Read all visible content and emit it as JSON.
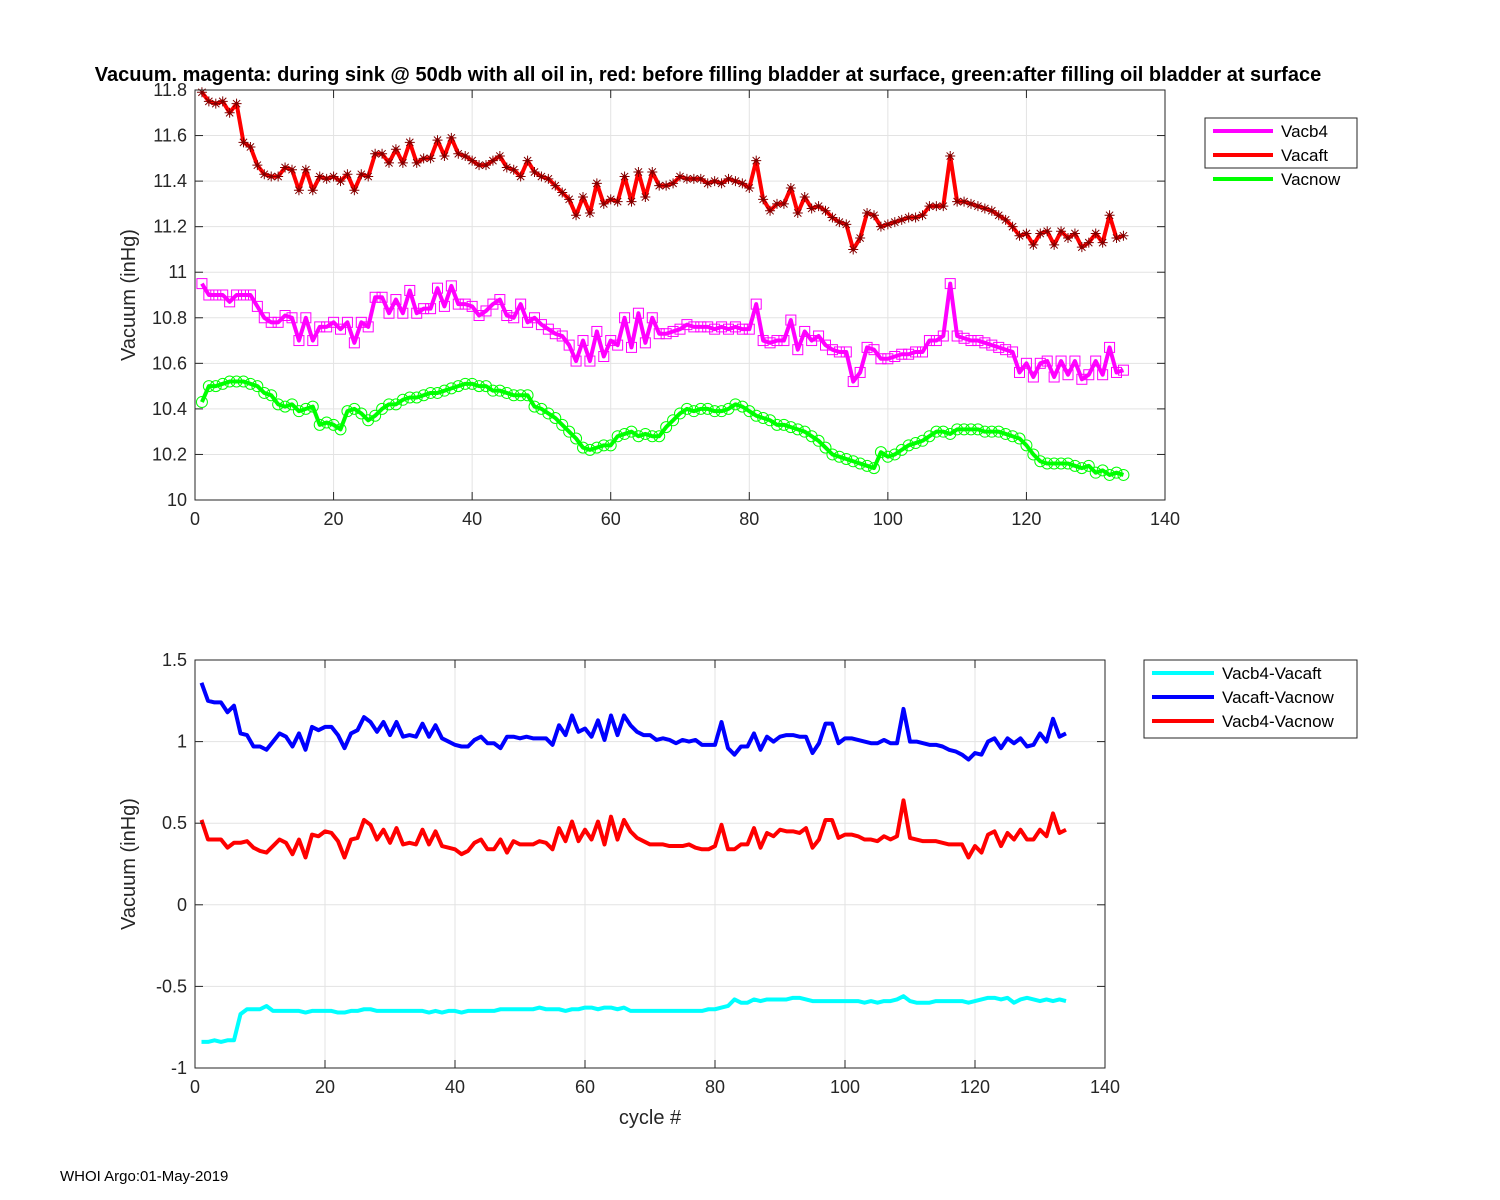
{
  "figure": {
    "title": "Vacuum. magenta: during sink @ 50db with all oil in, red: before filling bladder at surface, green:after filling oil bladder at surface",
    "footer": "WHOI Argo:01-May-2019"
  },
  "chart_data": [
    {
      "type": "line",
      "title": "Vacuum. magenta: during sink @ 50db with all oil in, red: before filling bladder at surface, green:after filling oil bladder at surface",
      "xlabel": "",
      "ylabel": "Vacuum (inHg)",
      "xlim": [
        0,
        140
      ],
      "ylim": [
        10,
        11.8
      ],
      "xticks": [
        0,
        20,
        40,
        60,
        80,
        100,
        120,
        140
      ],
      "yticks": [
        10,
        10.2,
        10.4,
        10.6,
        10.8,
        11,
        11.2,
        11.4,
        11.6,
        11.8
      ],
      "grid": true,
      "legend_position": "outside-top-right",
      "x_start": 1,
      "series": [
        {
          "name": "Vacb4",
          "color": "#ff00ff",
          "marker": "square",
          "values": [
            10.95,
            10.9,
            10.9,
            10.9,
            10.87,
            10.9,
            10.9,
            10.9,
            10.85,
            10.8,
            10.78,
            10.78,
            10.81,
            10.8,
            10.7,
            10.8,
            10.7,
            10.76,
            10.76,
            10.78,
            10.75,
            10.78,
            10.69,
            10.78,
            10.76,
            10.89,
            10.89,
            10.82,
            10.88,
            10.82,
            10.92,
            10.82,
            10.84,
            10.84,
            10.93,
            10.85,
            10.94,
            10.86,
            10.86,
            10.85,
            10.81,
            10.83,
            10.86,
            10.88,
            10.81,
            10.8,
            10.86,
            10.78,
            10.8,
            10.77,
            10.75,
            10.73,
            10.72,
            10.68,
            10.61,
            10.7,
            10.61,
            10.74,
            10.63,
            10.7,
            10.68,
            10.8,
            10.67,
            10.82,
            10.69,
            10.8,
            10.73,
            10.73,
            10.74,
            10.75,
            10.77,
            10.76,
            10.76,
            10.76,
            10.75,
            10.76,
            10.75,
            10.76,
            10.75,
            10.75,
            10.86,
            10.7,
            10.69,
            10.7,
            10.7,
            10.79,
            10.66,
            10.74,
            10.7,
            10.72,
            10.68,
            10.66,
            10.65,
            10.65,
            10.52,
            10.56,
            10.67,
            10.66,
            10.62,
            10.62,
            10.63,
            10.64,
            10.64,
            10.65,
            10.65,
            10.7,
            10.7,
            10.72,
            10.95,
            10.72,
            10.71,
            10.7,
            10.7,
            10.69,
            10.68,
            10.67,
            10.66,
            10.65,
            10.56,
            10.6,
            10.54,
            10.6,
            10.61,
            10.54,
            10.61,
            10.55,
            10.61,
            10.53,
            10.55,
            10.61,
            10.55,
            10.67,
            10.56,
            10.57
          ]
        },
        {
          "name": "Vacaft",
          "color": "#ff0000",
          "marker": "asterisk",
          "values": [
            11.79,
            11.75,
            11.74,
            11.75,
            11.7,
            11.74,
            11.57,
            11.55,
            11.47,
            11.43,
            11.42,
            11.42,
            11.46,
            11.45,
            11.36,
            11.45,
            11.36,
            11.42,
            11.41,
            11.42,
            11.4,
            11.43,
            11.36,
            11.43,
            11.42,
            11.52,
            11.52,
            11.48,
            11.54,
            11.48,
            11.57,
            11.48,
            11.5,
            11.5,
            11.58,
            11.51,
            11.59,
            11.52,
            11.51,
            11.49,
            11.47,
            11.47,
            11.49,
            11.51,
            11.46,
            11.45,
            11.42,
            11.49,
            11.44,
            11.42,
            11.41,
            11.38,
            11.35,
            11.32,
            11.25,
            11.33,
            11.26,
            11.39,
            11.3,
            11.32,
            11.31,
            11.42,
            11.31,
            11.44,
            11.33,
            11.44,
            11.38,
            11.38,
            11.39,
            11.42,
            11.41,
            11.41,
            11.41,
            11.39,
            11.4,
            11.39,
            11.41,
            11.4,
            11.39,
            11.37,
            11.49,
            11.32,
            11.27,
            11.3,
            11.3,
            11.37,
            11.26,
            11.33,
            11.28,
            11.29,
            11.27,
            11.24,
            11.22,
            11.21,
            11.1,
            11.15,
            11.26,
            11.25,
            11.2,
            11.21,
            11.22,
            11.23,
            11.24,
            11.24,
            11.25,
            11.29,
            11.29,
            11.29,
            11.51,
            11.31,
            11.31,
            11.3,
            11.29,
            11.28,
            11.27,
            11.25,
            11.23,
            11.2,
            11.16,
            11.17,
            11.12,
            11.17,
            11.18,
            11.12,
            11.18,
            11.15,
            11.17,
            11.11,
            11.13,
            11.17,
            11.13,
            11.25,
            11.15,
            11.16
          ]
        },
        {
          "name": "Vacnow",
          "color": "#00ff00",
          "marker": "circle",
          "values": [
            10.43,
            10.5,
            10.5,
            10.51,
            10.52,
            10.52,
            10.52,
            10.51,
            10.5,
            10.47,
            10.46,
            10.42,
            10.41,
            10.42,
            10.39,
            10.4,
            10.41,
            10.33,
            10.34,
            10.33,
            10.31,
            10.39,
            10.4,
            10.38,
            10.35,
            10.37,
            10.4,
            10.42,
            10.42,
            10.44,
            10.45,
            10.45,
            10.46,
            10.47,
            10.47,
            10.48,
            10.49,
            10.5,
            10.51,
            10.51,
            10.5,
            10.5,
            10.48,
            10.48,
            10.47,
            10.46,
            10.46,
            10.46,
            10.41,
            10.4,
            10.38,
            10.36,
            10.33,
            10.3,
            10.27,
            10.23,
            10.22,
            10.23,
            10.24,
            10.24,
            10.28,
            10.29,
            10.3,
            10.28,
            10.29,
            10.28,
            10.28,
            10.32,
            10.35,
            10.38,
            10.4,
            10.39,
            10.4,
            10.4,
            10.39,
            10.39,
            10.4,
            10.42,
            10.41,
            10.39,
            10.37,
            10.36,
            10.35,
            10.33,
            10.33,
            10.32,
            10.31,
            10.3,
            10.28,
            10.26,
            10.23,
            10.2,
            10.19,
            10.18,
            10.17,
            10.16,
            10.15,
            10.14,
            10.21,
            10.19,
            10.2,
            10.22,
            10.24,
            10.25,
            10.26,
            10.28,
            10.3,
            10.3,
            10.29,
            10.31,
            10.31,
            10.31,
            10.31,
            10.3,
            10.3,
            10.3,
            10.29,
            10.28,
            10.27,
            10.24,
            10.2,
            10.17,
            10.16,
            10.16,
            10.16,
            10.16,
            10.15,
            10.14,
            10.15,
            10.12,
            10.13,
            10.11,
            10.12,
            10.11
          ]
        }
      ]
    },
    {
      "type": "line",
      "title": "",
      "xlabel": "cycle #",
      "ylabel": "Vacuum (inHg)",
      "xlim": [
        0,
        140
      ],
      "ylim": [
        -1,
        1.5
      ],
      "xticks": [
        0,
        20,
        40,
        60,
        80,
        100,
        120,
        140
      ],
      "yticks": [
        -1,
        -0.5,
        0,
        0.5,
        1,
        1.5
      ],
      "grid": true,
      "legend_position": "outside-top-right",
      "x_start": 1,
      "series": [
        {
          "name": "Vacb4-Vacaft",
          "color": "#00ffff",
          "values": [
            -0.84,
            -0.84,
            -0.83,
            -0.84,
            -0.83,
            -0.83,
            -0.67,
            -0.64,
            -0.64,
            -0.64,
            -0.62,
            -0.65,
            -0.65,
            -0.65,
            -0.65,
            -0.65,
            -0.66,
            -0.65,
            -0.65,
            -0.65,
            -0.65,
            -0.66,
            -0.66,
            -0.65,
            -0.65,
            -0.64,
            -0.64,
            -0.65,
            -0.65,
            -0.65,
            -0.65,
            -0.65,
            -0.65,
            -0.65,
            -0.65,
            -0.66,
            -0.65,
            -0.66,
            -0.65,
            -0.65,
            -0.66,
            -0.65,
            -0.65,
            -0.65,
            -0.65,
            -0.65,
            -0.64,
            -0.64,
            -0.64,
            -0.64,
            -0.64,
            -0.64,
            -0.63,
            -0.64,
            -0.64,
            -0.64,
            -0.65,
            -0.64,
            -0.64,
            -0.63,
            -0.63,
            -0.64,
            -0.63,
            -0.63,
            -0.64,
            -0.63,
            -0.65,
            -0.65,
            -0.65,
            -0.65,
            -0.65,
            -0.65,
            -0.65,
            -0.65,
            -0.65,
            -0.65,
            -0.65,
            -0.65,
            -0.64,
            -0.64,
            -0.63,
            -0.62,
            -0.58,
            -0.6,
            -0.6,
            -0.58,
            -0.59,
            -0.58,
            -0.58,
            -0.58,
            -0.58,
            -0.57,
            -0.57,
            -0.58,
            -0.59,
            -0.59,
            -0.59,
            -0.59,
            -0.59,
            -0.59,
            -0.59,
            -0.59,
            -0.6,
            -0.59,
            -0.6,
            -0.59,
            -0.59,
            -0.58,
            -0.56,
            -0.59,
            -0.6,
            -0.6,
            -0.6,
            -0.59,
            -0.59,
            -0.59,
            -0.59,
            -0.59,
            -0.6,
            -0.59,
            -0.58,
            -0.57,
            -0.57,
            -0.58,
            -0.57,
            -0.6,
            -0.58,
            -0.57,
            -0.58,
            -0.59,
            -0.58,
            -0.59,
            -0.58,
            -0.59
          ]
        },
        {
          "name": "Vacaft-Vacnow",
          "color": "#0000ff",
          "values": [
            1.36,
            1.25,
            1.24,
            1.24,
            1.18,
            1.22,
            1.05,
            1.04,
            0.97,
            0.97,
            0.95,
            1.0,
            1.05,
            1.03,
            0.97,
            1.05,
            0.95,
            1.09,
            1.07,
            1.09,
            1.09,
            1.04,
            0.96,
            1.05,
            1.07,
            1.15,
            1.12,
            1.06,
            1.12,
            1.04,
            1.12,
            1.03,
            1.04,
            1.03,
            1.11,
            1.03,
            1.1,
            1.02,
            1.0,
            0.98,
            0.97,
            0.97,
            1.01,
            1.03,
            0.99,
            0.99,
            0.96,
            1.03,
            1.03,
            1.02,
            1.03,
            1.02,
            1.02,
            1.02,
            0.98,
            1.1,
            1.04,
            1.16,
            1.06,
            1.08,
            1.03,
            1.13,
            1.01,
            1.16,
            1.04,
            1.16,
            1.1,
            1.06,
            1.04,
            1.04,
            1.01,
            1.02,
            1.01,
            0.99,
            1.01,
            1.0,
            1.01,
            0.98,
            0.98,
            0.98,
            1.12,
            0.96,
            0.92,
            0.97,
            0.97,
            1.05,
            0.95,
            1.03,
            1.0,
            1.03,
            1.04,
            1.04,
            1.03,
            1.03,
            0.93,
            0.99,
            1.11,
            1.11,
            0.99,
            1.02,
            1.02,
            1.01,
            1.0,
            0.99,
            0.99,
            1.01,
            0.99,
            0.99,
            1.2,
            1.0,
            1.0,
            0.99,
            0.98,
            0.98,
            0.97,
            0.95,
            0.94,
            0.92,
            0.89,
            0.93,
            0.92,
            1.0,
            1.02,
            0.96,
            1.02,
            0.99,
            1.02,
            0.97,
            0.98,
            1.05,
            1.0,
            1.14,
            1.03,
            1.05
          ]
        },
        {
          "name": "Vacb4-Vacnow",
          "color": "#ff0000",
          "values": [
            0.52,
            0.4,
            0.4,
            0.4,
            0.35,
            0.38,
            0.38,
            0.39,
            0.35,
            0.33,
            0.32,
            0.36,
            0.4,
            0.38,
            0.31,
            0.4,
            0.29,
            0.43,
            0.42,
            0.45,
            0.44,
            0.39,
            0.29,
            0.4,
            0.41,
            0.52,
            0.49,
            0.4,
            0.46,
            0.38,
            0.47,
            0.37,
            0.38,
            0.37,
            0.46,
            0.37,
            0.45,
            0.36,
            0.35,
            0.34,
            0.31,
            0.33,
            0.38,
            0.4,
            0.34,
            0.34,
            0.4,
            0.32,
            0.39,
            0.37,
            0.37,
            0.37,
            0.39,
            0.38,
            0.34,
            0.47,
            0.39,
            0.51,
            0.39,
            0.46,
            0.4,
            0.51,
            0.37,
            0.54,
            0.4,
            0.52,
            0.45,
            0.41,
            0.39,
            0.37,
            0.37,
            0.37,
            0.36,
            0.36,
            0.36,
            0.37,
            0.35,
            0.34,
            0.34,
            0.36,
            0.49,
            0.34,
            0.34,
            0.37,
            0.37,
            0.47,
            0.35,
            0.44,
            0.42,
            0.46,
            0.45,
            0.45,
            0.44,
            0.47,
            0.35,
            0.4,
            0.52,
            0.52,
            0.41,
            0.43,
            0.43,
            0.42,
            0.4,
            0.4,
            0.39,
            0.42,
            0.4,
            0.42,
            0.64,
            0.41,
            0.4,
            0.39,
            0.39,
            0.39,
            0.38,
            0.37,
            0.37,
            0.37,
            0.29,
            0.36,
            0.32,
            0.43,
            0.45,
            0.36,
            0.44,
            0.4,
            0.46,
            0.4,
            0.4,
            0.46,
            0.42,
            0.56,
            0.44,
            0.46
          ]
        }
      ]
    }
  ]
}
